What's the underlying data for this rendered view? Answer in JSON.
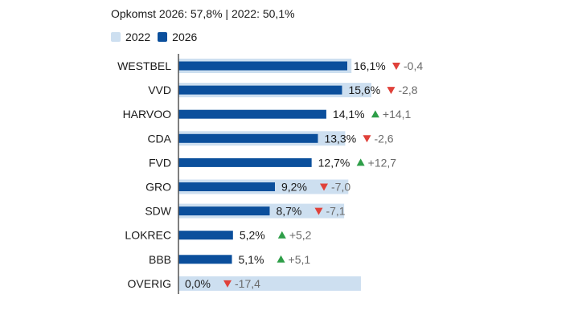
{
  "turnout_text": "Opkomst 2026: 57,8% | 2022: 50,1%",
  "legend": [
    {
      "label": "2022",
      "color": "#cddff0"
    },
    {
      "label": "2026",
      "color": "#0b4f9c"
    }
  ],
  "colors": {
    "bar_2022": "#cddff0",
    "bar_2026": "#0b4f9c",
    "up": "#2e9e48",
    "down": "#e0413a",
    "axis": "#555555",
    "change_text": "#6b6b6b"
  },
  "chart_data": {
    "type": "bar",
    "orientation": "horizontal",
    "categories": [
      "WESTBEL",
      "VVD",
      "HARVOO",
      "CDA",
      "FVD",
      "GRO",
      "SDW",
      "LOKREC",
      "BBB",
      "OVERIG"
    ],
    "series": [
      {
        "name": "2022",
        "values": [
          16.5,
          18.4,
          0.0,
          15.9,
          0.0,
          16.2,
          15.8,
          0.0,
          0.0,
          17.4
        ]
      },
      {
        "name": "2026",
        "values": [
          16.1,
          15.6,
          14.1,
          13.3,
          12.7,
          9.2,
          8.7,
          5.2,
          5.1,
          0.0
        ]
      }
    ],
    "value_labels": [
      "16,1%",
      "15,6%",
      "14,1%",
      "13,3%",
      "12,7%",
      "9,2%",
      "8,7%",
      "5,2%",
      "5,1%",
      "0,0%"
    ],
    "changes": [
      {
        "direction": "down",
        "text": "-0,4"
      },
      {
        "direction": "down",
        "text": "-2,8"
      },
      {
        "direction": "up",
        "text": "+14,1"
      },
      {
        "direction": "down",
        "text": "-2,6"
      },
      {
        "direction": "up",
        "text": "+12,7"
      },
      {
        "direction": "down",
        "text": "-7,0"
      },
      {
        "direction": "down",
        "text": "-7,1"
      },
      {
        "direction": "up",
        "text": "+5,2"
      },
      {
        "direction": "up",
        "text": "+5,1"
      },
      {
        "direction": "down",
        "text": "-17,4"
      }
    ],
    "xlim": [
      0,
      18.4
    ],
    "title": "",
    "xlabel": "",
    "ylabel": "",
    "grid": false,
    "legend_position": "top-left"
  }
}
